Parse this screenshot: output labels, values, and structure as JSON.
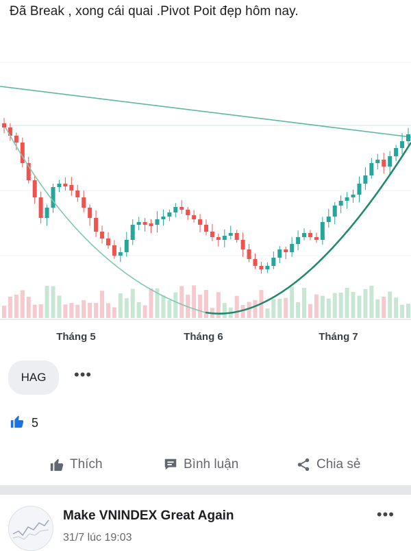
{
  "post": {
    "text": "Đã Break , xong cái quai .Pivot Poit đẹp hôm nay."
  },
  "chart_data": {
    "type": "candlestick",
    "x_tick_labels": [
      "Tháng 5",
      "Tháng 6",
      "Tháng 7"
    ],
    "overlays": [
      "descending trendline",
      "cup curve",
      "horizontal resistance line",
      "volume bars"
    ],
    "colors": {
      "up": "#26a69a",
      "down": "#ef5350",
      "vol_up": "#c8e6d4",
      "vol_down": "#f6c9cf",
      "trend": "#5cb8a0"
    }
  },
  "tag": {
    "label": "HAG"
  },
  "more_label": "•••",
  "reactions": {
    "like_count": "5",
    "icon": "like-icon"
  },
  "actions": {
    "like": "Thích",
    "comment": "Bình luận",
    "share": "Chia sẻ"
  },
  "next_post": {
    "page_name": "Make VNINDEX Great Again",
    "timestamp": "31/7 lúc 19:03",
    "more_label": "•••"
  }
}
